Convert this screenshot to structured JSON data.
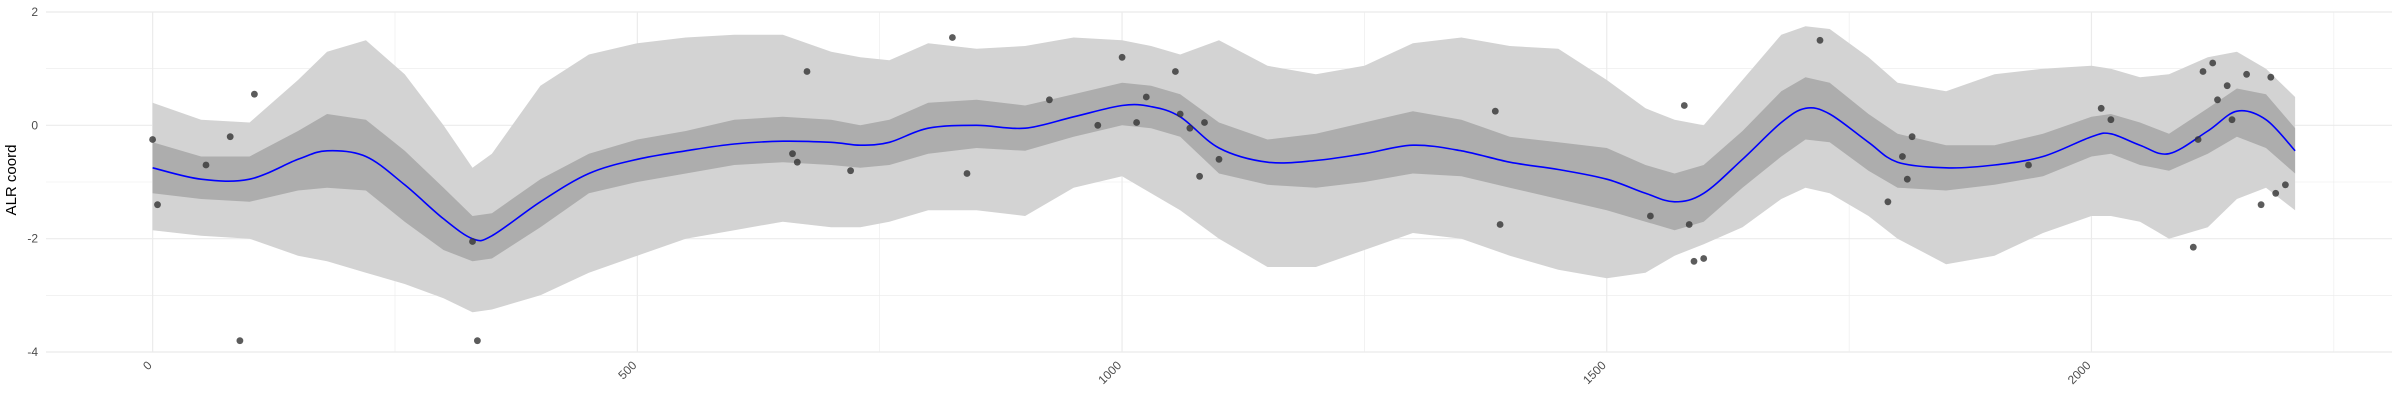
{
  "chart_data": {
    "type": "line",
    "title": "",
    "xlabel": "",
    "ylabel": "ALR coord",
    "xlim": [
      -110,
      2310
    ],
    "ylim": [
      -4,
      2
    ],
    "grid": true,
    "legend": "none",
    "x_ticks": [
      0,
      500,
      1000,
      1500,
      2000
    ],
    "x_tick_labels": [
      "0",
      "500",
      "1000",
      "1500",
      "2000"
    ],
    "y_ticks": [
      -4,
      -2,
      0,
      2
    ],
    "y_tick_labels": [
      "-4",
      "-2",
      "0",
      "2"
    ],
    "colors": {
      "line": "#0000ff",
      "inner_band": "#adadad",
      "outer_band": "#d3d3d3",
      "points": "#333333",
      "grid": "#ebebeb"
    },
    "series": [
      {
        "kind": "line",
        "x": [
          0,
          50,
          100,
          150,
          180,
          220,
          260,
          300,
          330,
          350,
          400,
          450,
          500,
          550,
          600,
          650,
          700,
          730,
          760,
          800,
          850,
          900,
          950,
          1000,
          1030,
          1060,
          1100,
          1150,
          1200,
          1250,
          1300,
          1350,
          1400,
          1450,
          1500,
          1540,
          1570,
          1600,
          1640,
          1680,
          1705,
          1730,
          1770,
          1800,
          1850,
          1900,
          1950,
          2000,
          2020,
          2050,
          2080,
          2120,
          2150,
          2180,
          2210
        ],
        "y": [
          -0.75,
          -0.95,
          -0.95,
          -0.6,
          -0.45,
          -0.55,
          -1.05,
          -1.65,
          -2.0,
          -1.95,
          -1.35,
          -0.85,
          -0.6,
          -0.45,
          -0.33,
          -0.28,
          -0.3,
          -0.35,
          -0.3,
          -0.05,
          0.0,
          -0.05,
          0.15,
          0.35,
          0.33,
          0.15,
          -0.4,
          -0.65,
          -0.62,
          -0.5,
          -0.35,
          -0.45,
          -0.65,
          -0.78,
          -0.95,
          -1.2,
          -1.35,
          -1.2,
          -0.6,
          0.05,
          0.3,
          0.2,
          -0.3,
          -0.65,
          -0.75,
          -0.7,
          -0.55,
          -0.2,
          -0.15,
          -0.35,
          -0.5,
          -0.1,
          0.25,
          0.1,
          -0.45
        ]
      },
      {
        "kind": "band",
        "x": [
          0,
          50,
          100,
          150,
          180,
          220,
          260,
          300,
          330,
          350,
          400,
          450,
          500,
          550,
          600,
          650,
          700,
          730,
          760,
          800,
          850,
          900,
          950,
          1000,
          1030,
          1060,
          1100,
          1150,
          1200,
          1250,
          1300,
          1350,
          1400,
          1450,
          1500,
          1540,
          1570,
          1600,
          1640,
          1680,
          1705,
          1730,
          1770,
          1800,
          1850,
          1900,
          1950,
          2000,
          2020,
          2050,
          2080,
          2120,
          2150,
          2180,
          2210
        ],
        "lower": [
          -1.2,
          -1.3,
          -1.35,
          -1.15,
          -1.1,
          -1.15,
          -1.7,
          -2.2,
          -2.4,
          -2.35,
          -1.8,
          -1.2,
          -1.0,
          -0.85,
          -0.7,
          -0.65,
          -0.7,
          -0.75,
          -0.7,
          -0.5,
          -0.4,
          -0.45,
          -0.2,
          0.0,
          -0.05,
          -0.2,
          -0.85,
          -1.05,
          -1.1,
          -1.0,
          -0.85,
          -0.9,
          -1.1,
          -1.3,
          -1.5,
          -1.7,
          -1.85,
          -1.7,
          -1.1,
          -0.55,
          -0.25,
          -0.3,
          -0.8,
          -1.1,
          -1.15,
          -1.05,
          -0.9,
          -0.55,
          -0.5,
          -0.7,
          -0.8,
          -0.5,
          -0.2,
          -0.4,
          -0.85
        ],
        "upper": [
          -0.3,
          -0.55,
          -0.55,
          -0.1,
          0.2,
          0.1,
          -0.45,
          -1.1,
          -1.6,
          -1.55,
          -0.95,
          -0.5,
          -0.25,
          -0.1,
          0.1,
          0.15,
          0.1,
          0.0,
          0.1,
          0.4,
          0.45,
          0.35,
          0.55,
          0.75,
          0.7,
          0.55,
          0.05,
          -0.25,
          -0.15,
          0.05,
          0.25,
          0.1,
          -0.2,
          -0.3,
          -0.4,
          -0.7,
          -0.85,
          -0.7,
          -0.1,
          0.6,
          0.85,
          0.75,
          0.2,
          -0.15,
          -0.35,
          -0.35,
          -0.15,
          0.15,
          0.2,
          0.05,
          -0.15,
          0.3,
          0.65,
          0.55,
          -0.05
        ]
      },
      {
        "kind": "band",
        "x": [
          0,
          50,
          100,
          150,
          180,
          220,
          260,
          300,
          330,
          350,
          400,
          450,
          500,
          550,
          600,
          650,
          700,
          730,
          760,
          800,
          850,
          900,
          950,
          1000,
          1030,
          1060,
          1100,
          1150,
          1200,
          1250,
          1300,
          1350,
          1400,
          1450,
          1500,
          1540,
          1570,
          1600,
          1640,
          1680,
          1705,
          1730,
          1770,
          1800,
          1850,
          1900,
          1950,
          2000,
          2020,
          2050,
          2080,
          2120,
          2150,
          2180,
          2210
        ],
        "lower": [
          -1.85,
          -1.95,
          -2.0,
          -2.3,
          -2.4,
          -2.6,
          -2.8,
          -3.05,
          -3.3,
          -3.25,
          -3.0,
          -2.6,
          -2.3,
          -2.0,
          -1.85,
          -1.7,
          -1.8,
          -1.8,
          -1.7,
          -1.5,
          -1.5,
          -1.6,
          -1.1,
          -0.9,
          -1.2,
          -1.5,
          -2.0,
          -2.5,
          -2.5,
          -2.2,
          -1.9,
          -2.0,
          -2.3,
          -2.55,
          -2.7,
          -2.6,
          -2.3,
          -2.1,
          -1.8,
          -1.3,
          -1.1,
          -1.2,
          -1.6,
          -2.0,
          -2.45,
          -2.3,
          -1.9,
          -1.6,
          -1.6,
          -1.7,
          -2.0,
          -1.8,
          -1.3,
          -1.1,
          -1.5
        ],
        "upper": [
          0.4,
          0.1,
          0.05,
          0.8,
          1.3,
          1.5,
          0.9,
          0.0,
          -0.75,
          -0.5,
          0.7,
          1.25,
          1.45,
          1.55,
          1.6,
          1.6,
          1.3,
          1.2,
          1.15,
          1.45,
          1.35,
          1.4,
          1.55,
          1.5,
          1.4,
          1.25,
          1.5,
          1.05,
          0.9,
          1.05,
          1.45,
          1.55,
          1.4,
          1.35,
          0.8,
          0.3,
          0.1,
          0.0,
          0.8,
          1.6,
          1.75,
          1.7,
          1.2,
          0.75,
          0.6,
          0.9,
          1.0,
          1.05,
          1.0,
          0.85,
          0.9,
          1.2,
          1.3,
          1.0,
          0.5
        ]
      },
      {
        "kind": "scatter",
        "x": [
          0,
          5,
          55,
          80,
          90,
          105,
          330,
          335,
          660,
          665,
          675,
          720,
          825,
          840,
          925,
          975,
          1000,
          1015,
          1025,
          1055,
          1060,
          1070,
          1080,
          1085,
          1100,
          1385,
          1390,
          1545,
          1580,
          1585,
          1590,
          1600,
          1720,
          1790,
          1805,
          1810,
          1815,
          1935,
          2010,
          2020,
          2105,
          2110,
          2115,
          2125,
          2130,
          2140,
          2145,
          2160,
          2175,
          2185,
          2190,
          2200
        ],
        "y": [
          -0.25,
          -1.4,
          -0.7,
          -0.2,
          -3.8,
          0.55,
          -2.05,
          -3.8,
          -0.5,
          -0.65,
          0.95,
          -0.8,
          1.55,
          -0.85,
          0.45,
          0.0,
          1.2,
          0.05,
          0.5,
          0.95,
          0.2,
          -0.05,
          -0.9,
          0.05,
          -0.6,
          0.25,
          -1.75,
          -1.6,
          0.35,
          -1.75,
          -2.4,
          -2.35,
          1.5,
          -1.35,
          -0.55,
          -0.95,
          -0.2,
          -0.7,
          0.3,
          0.1,
          -2.15,
          -0.25,
          0.95,
          1.1,
          0.45,
          0.7,
          0.1,
          0.9,
          -1.4,
          0.85,
          -1.2,
          -1.05
        ]
      }
    ]
  }
}
